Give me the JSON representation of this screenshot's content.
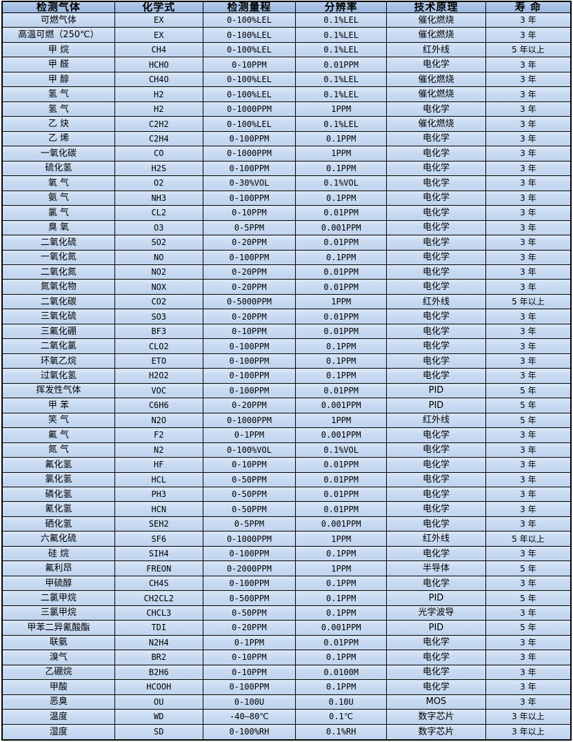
{
  "table": {
    "columns": [
      {
        "key": "gas",
        "label": "检测气体"
      },
      {
        "key": "formula",
        "label": "化学式"
      },
      {
        "key": "range",
        "label": "检测量程"
      },
      {
        "key": "resolution",
        "label": "分辨率"
      },
      {
        "key": "principle",
        "label": "技术原理"
      },
      {
        "key": "lifespan",
        "label": "寿 命"
      }
    ],
    "rows": [
      [
        "可燃气体",
        "EX",
        "0-100%LEL",
        "0.1%LEL",
        "催化燃烧",
        "3 年"
      ],
      [
        "高温可燃（250℃）",
        "EX",
        "0-100%LEL",
        "0.1%LEL",
        "催化燃烧",
        "3 年"
      ],
      [
        "甲 烷",
        "CH4",
        "0-100%LEL",
        "0.1%LEL",
        "红外线",
        "5 年以上"
      ],
      [
        "甲 醛",
        "HCHO",
        "0-10PPM",
        "0.01PPM",
        "电化学",
        "3 年"
      ],
      [
        "甲 醇",
        "CH4O",
        "0-100%LEL",
        "0.1%LEL",
        "催化燃烧",
        "3 年"
      ],
      [
        "氢 气",
        "H2",
        "0-100%LEL",
        "0.1%LEL",
        "催化燃烧",
        "3 年"
      ],
      [
        "氢 气",
        "H2",
        "0-1000PPM",
        "1PPM",
        "电化学",
        "3 年"
      ],
      [
        "乙 炔",
        "C2H2",
        "0-100%LEL",
        "0.1%LEL",
        "催化燃烧",
        "3 年"
      ],
      [
        "乙 烯",
        "C2H4",
        "0-100PPM",
        "0.1PPM",
        "电化学",
        "3 年"
      ],
      [
        "一氧化碳",
        "CO",
        "0-1000PPM",
        "1PPM",
        "电化学",
        "3 年"
      ],
      [
        "硫化氢",
        "H2S",
        "0-100PPM",
        "0.1PPM",
        "电化学",
        "3 年"
      ],
      [
        "氧 气",
        "O2",
        "0-30%VOL",
        "0.1%VOL",
        "电化学",
        "3 年"
      ],
      [
        "氨 气",
        "NH3",
        "0-100PPM",
        "0.1PPM",
        "电化学",
        "3 年"
      ],
      [
        "氯 气",
        "CL2",
        "0-10PPM",
        "0.01PPM",
        "电化学",
        "3 年"
      ],
      [
        "臭 氧",
        "O3",
        "0-5PPM",
        "0.001PPM",
        "电化学",
        "3 年"
      ],
      [
        "二氧化硫",
        "SO2",
        "0-20PPM",
        "0.01PPM",
        "电化学",
        "3 年"
      ],
      [
        "一氧化氮",
        "NO",
        "0-100PPM",
        "0.1PPM",
        "电化学",
        "3 年"
      ],
      [
        "二氧化氮",
        "NO2",
        "0-20PPM",
        "0.01PPM",
        "电化学",
        "3 年"
      ],
      [
        "氮氧化物",
        "NOX",
        "0-20PPM",
        "0.01PPM",
        "电化学",
        "3 年"
      ],
      [
        "二氧化碳",
        "CO2",
        "0-5000PPM",
        "1PPM",
        "红外线",
        "5 年以上"
      ],
      [
        "三氧化硫",
        "SO3",
        "0-20PPM",
        "0.01PPM",
        "电化学",
        "3 年"
      ],
      [
        "三氟化硼",
        "BF3",
        "0-10PPM",
        "0.01PPM",
        "电化学",
        "3 年"
      ],
      [
        "二氧化氯",
        "CLO2",
        "0-100PPM",
        "0.1PPM",
        "电化学",
        "3 年"
      ],
      [
        "环氧乙烷",
        "ETO",
        "0-100PPM",
        "0.1PPM",
        "电化学",
        "3 年"
      ],
      [
        "过氧化氢",
        "H2O2",
        "0-100PPM",
        "0.1PPM",
        "电化学",
        "3 年"
      ],
      [
        "挥发性气体",
        "VOC",
        "0-100PPM",
        "0.01PPM",
        "PID",
        "5 年"
      ],
      [
        "甲 苯",
        "C6H6",
        "0-20PPM",
        "0.001PPM",
        "PID",
        "5 年"
      ],
      [
        "笑 气",
        "N2O",
        "0-1000PPM",
        "1PPM",
        "红外线",
        "5 年"
      ],
      [
        "氟 气",
        "F2",
        "0-1PPM",
        "0.001PPM",
        "电化学",
        "3 年"
      ],
      [
        "氮 气",
        "N2",
        "0-100%VOL",
        "0.1%VOL",
        "电化学",
        "3 年"
      ],
      [
        "氟化氢",
        "HF",
        "0-10PPM",
        "0.01PPM",
        "电化学",
        "3 年"
      ],
      [
        "氯化氢",
        "HCL",
        "0-50PPM",
        "0.01PPM",
        "电化学",
        "3 年"
      ],
      [
        "磷化氢",
        "PH3",
        "0-50PPM",
        "0.01PPM",
        "电化学",
        "3 年"
      ],
      [
        "氰化氢",
        "HCN",
        "0-50PPM",
        "0.01PPM",
        "电化学",
        "3 年"
      ],
      [
        "硒化氢",
        "SEH2",
        "0-5PPM",
        "0.001PPM",
        "电化学",
        "3 年"
      ],
      [
        "六氟化硫",
        "SF6",
        "0-1000PPM",
        "1PPM",
        "红外线",
        "5 年以上"
      ],
      [
        "硅 烷",
        "SIH4",
        "0-100PPM",
        "0.1PPM",
        "电化学",
        "3 年"
      ],
      [
        "氟利昂",
        "FREON",
        "0-2000PPM",
        "1PPM",
        "半导体",
        "5 年"
      ],
      [
        "甲硫醇",
        "CH4S",
        "0-100PPM",
        "0.1PPM",
        "电化学",
        "3 年"
      ],
      [
        "二氯甲烷",
        "CH2CL2",
        "0-500PPM",
        "0.1PPM",
        "PID",
        "5 年"
      ],
      [
        "三氯甲烷",
        "CHCL3",
        "0-50PPM",
        "0.1PPM",
        "光学波导",
        "3 年"
      ],
      [
        "甲苯二异氰酸酯",
        "TDI",
        "0-20PPM",
        "0.001PPM",
        "PID",
        "5 年"
      ],
      [
        "联氨",
        "N2H4",
        "0-1PPM",
        "0.01PPM",
        "电化学",
        "3 年"
      ],
      [
        "溴气",
        "BR2",
        "0-10PPM",
        "0.1PPM",
        "电化学",
        "3 年"
      ],
      [
        "乙硼烷",
        "B2H6",
        "0-10PPM",
        "0.0100M",
        "电化学",
        "3 年"
      ],
      [
        "甲酸",
        "HCOOH",
        "0-100PPM",
        "0.1PPM",
        "电化学",
        "3 年"
      ],
      [
        "恶臭",
        "OU",
        "0-100U",
        "0.10U",
        "MOS",
        "3 年"
      ],
      [
        "温度",
        "WD",
        "-40—80℃",
        "0.1℃",
        "数字芯片",
        "3 年以上"
      ],
      [
        "湿度",
        "SD",
        "0-100%RH",
        "0.1%RH",
        "数字芯片",
        "3 年以上"
      ]
    ]
  },
  "colors": {
    "header_bg": "#a6c1e4",
    "cell_bg": "#c5d8f0",
    "cell_highlight": "#dbe7f7",
    "border": "#000000",
    "text": "#000000",
    "page_bg": "#ffffff"
  }
}
